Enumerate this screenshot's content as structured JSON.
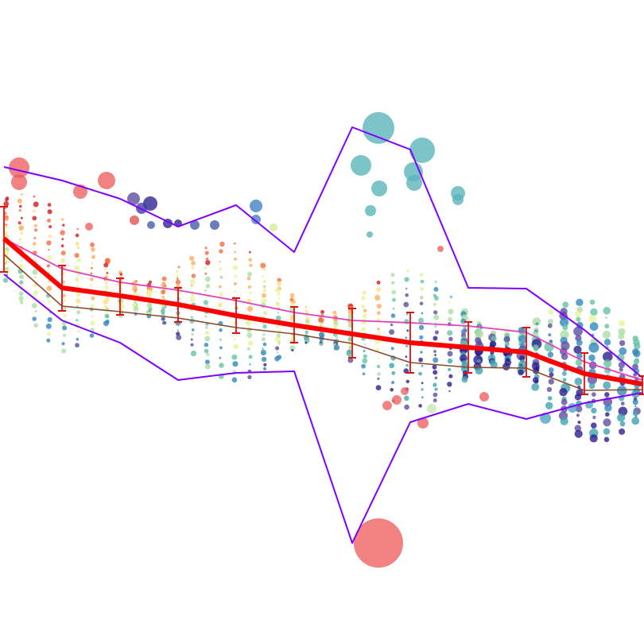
{
  "chart_data": {
    "type": "scatter",
    "title": "",
    "xlabel": "",
    "ylabel": "",
    "grid": false,
    "axes_visible": false,
    "xlim": [
      0,
      810
    ],
    "ylim": [
      810,
      0
    ],
    "x": [
      5,
      78,
      151,
      224,
      297,
      370,
      443,
      516,
      589,
      662,
      735,
      808
    ],
    "series": [
      {
        "role": "mean-line",
        "color": "#ff0000",
        "values": [
          300,
          362,
          372,
          383,
          397,
          409,
          420,
          431,
          437,
          443,
          470,
          483
        ]
      },
      {
        "role": "error-bar-low",
        "color": "#dd1111",
        "values": [
          260,
          334,
          350,
          362,
          375,
          386,
          388,
          393,
          405,
          412,
          444,
          473
        ]
      },
      {
        "role": "error-bar-high",
        "color": "#dd1111",
        "values": [
          342,
          391,
          396,
          405,
          419,
          431,
          450,
          469,
          469,
          474,
          496,
          496
        ]
      },
      {
        "role": "upper-trend",
        "color": "#e040c0",
        "values": [
          300,
          338,
          355,
          365,
          378,
          393,
          403,
          406,
          410,
          418,
          455,
          478
        ]
      },
      {
        "role": "lower-trend",
        "color": "#8a4a2a",
        "values": [
          320,
          385,
          392,
          400,
          412,
          420,
          432,
          456,
          462,
          463,
          491,
          490
        ]
      },
      {
        "role": "envelope-top",
        "color": "#8000ff",
        "values": [
          210,
          227,
          250,
          285,
          258,
          317,
          160,
          188,
          362,
          363,
          415,
          475
        ]
      },
      {
        "role": "envelope-bottom",
        "color": "#8000ff",
        "values": [
          345,
          403,
          431,
          478,
          469,
          467,
          683,
          531,
          508,
          527,
          507,
          494
        ]
      }
    ],
    "scatter_stats": {
      "x_columns": 45,
      "x_start": 8,
      "x_step": 18,
      "color_scale": [
        "#d7191c",
        "#f46d43",
        "#fdae61",
        "#fee08b",
        "#e6f598",
        "#abdda4",
        "#66c2a5",
        "#3288bd",
        "#5e4fa2",
        "#2c1f8f",
        "#3ea4ae"
      ]
    },
    "large_points": [
      {
        "x": 24,
        "y": 211,
        "size": 13,
        "color": "#ee5e5e"
      },
      {
        "x": 24,
        "y": 229,
        "size": 10,
        "color": "#ee5e5e"
      },
      {
        "x": 101,
        "y": 241,
        "size": 9,
        "color": "#ee5e5e"
      },
      {
        "x": 134,
        "y": 227,
        "size": 11,
        "color": "#ee5e5e"
      },
      {
        "x": 112,
        "y": 285,
        "size": 5,
        "color": "#ee5e5e"
      },
      {
        "x": 168,
        "y": 250,
        "size": 8,
        "color": "#5a4a9a"
      },
      {
        "x": 189,
        "y": 256,
        "size": 9,
        "color": "#2c1f8f"
      },
      {
        "x": 178,
        "y": 262,
        "size": 7,
        "color": "#3f3ca0"
      },
      {
        "x": 169,
        "y": 277,
        "size": 6,
        "color": "#e05050"
      },
      {
        "x": 211,
        "y": 281,
        "size": 6,
        "color": "#2c1f8f"
      },
      {
        "x": 224,
        "y": 281,
        "size": 5,
        "color": "#2c1f8f"
      },
      {
        "x": 190,
        "y": 283,
        "size": 5,
        "color": "#3f5aa8"
      },
      {
        "x": 245,
        "y": 283,
        "size": 6,
        "color": "#3f5aa8"
      },
      {
        "x": 270,
        "y": 283,
        "size": 6,
        "color": "#3f5aa8"
      },
      {
        "x": 322,
        "y": 259,
        "size": 8,
        "color": "#3f7fc0"
      },
      {
        "x": 322,
        "y": 276,
        "size": 6,
        "color": "#3f7fc0"
      },
      {
        "x": 344,
        "y": 286,
        "size": 5,
        "color": "#d6ec8a"
      },
      {
        "x": 476,
        "y": 161,
        "size": 20,
        "color": "#59b3ba"
      },
      {
        "x": 531,
        "y": 189,
        "size": 16,
        "color": "#59b3ba"
      },
      {
        "x": 454,
        "y": 208,
        "size": 13,
        "color": "#59b3ba"
      },
      {
        "x": 520,
        "y": 216,
        "size": 12,
        "color": "#59b3ba"
      },
      {
        "x": 521,
        "y": 230,
        "size": 10,
        "color": "#59b3ba"
      },
      {
        "x": 477,
        "y": 237,
        "size": 10,
        "color": "#59b3ba"
      },
      {
        "x": 576,
        "y": 243,
        "size": 9,
        "color": "#59b3ba"
      },
      {
        "x": 576,
        "y": 251,
        "size": 7,
        "color": "#59b3ba"
      },
      {
        "x": 466,
        "y": 265,
        "size": 7,
        "color": "#59b3ba"
      },
      {
        "x": 465,
        "y": 295,
        "size": 4,
        "color": "#59b3ba"
      },
      {
        "x": 476,
        "y": 683,
        "size": 31,
        "color": "#ee5e5e"
      },
      {
        "x": 487,
        "y": 510,
        "size": 6,
        "color": "#ee5e5e"
      },
      {
        "x": 499,
        "y": 503,
        "size": 6,
        "color": "#ee5e5e"
      },
      {
        "x": 509,
        "y": 492,
        "size": 5,
        "color": "#ee5e5e"
      },
      {
        "x": 532,
        "y": 532,
        "size": 7,
        "color": "#ee5e5e"
      },
      {
        "x": 543,
        "y": 514,
        "size": 6,
        "color": "#c8e8b8"
      },
      {
        "x": 609,
        "y": 499,
        "size": 6,
        "color": "#ee5e5e"
      },
      {
        "x": 686,
        "y": 526,
        "size": 7,
        "color": "#4aa3c0"
      },
      {
        "x": 720,
        "y": 513,
        "size": 6,
        "color": "#4aa3c0"
      },
      {
        "x": 741,
        "y": 509,
        "size": 5,
        "color": "#4aa3c0"
      },
      {
        "x": 554,
        "y": 313,
        "size": 4,
        "color": "#ee5e5e"
      }
    ]
  }
}
